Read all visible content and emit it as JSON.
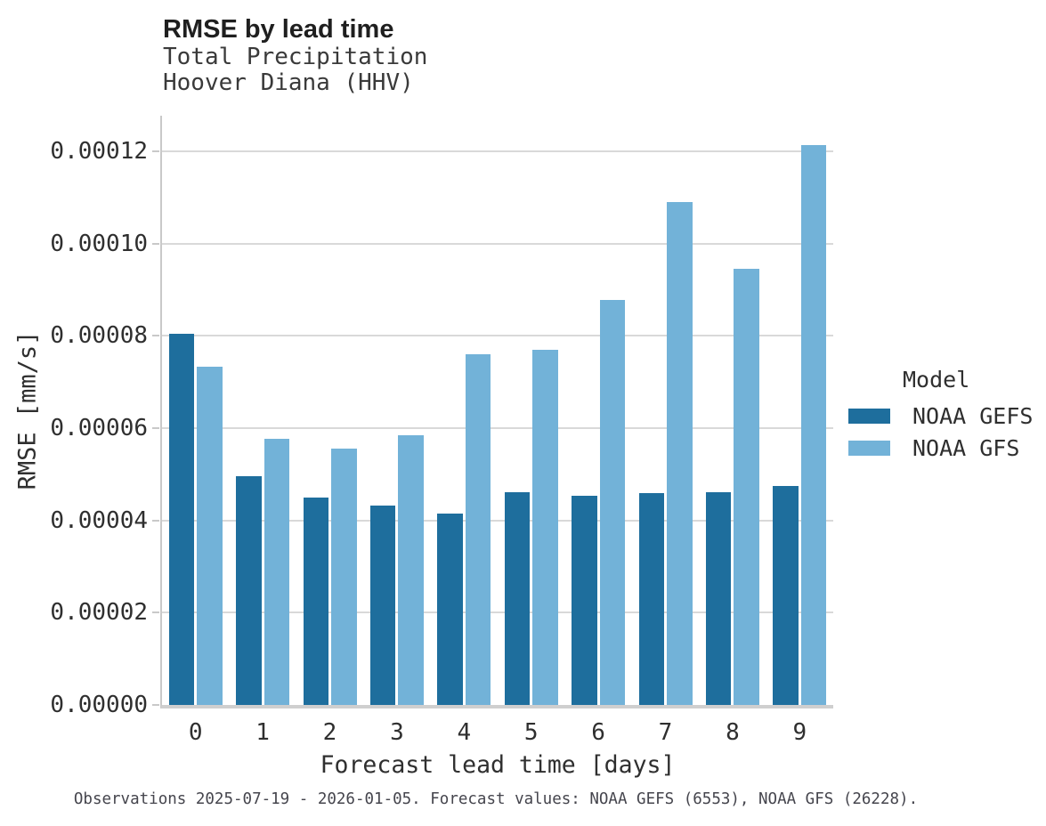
{
  "header": {
    "title": "RMSE by lead time",
    "subtitle_line1": "Total Precipitation",
    "subtitle_line2": "Hoover Diana (HHV)"
  },
  "footer": {
    "caption": "Observations 2025-07-19 - 2026-01-05. Forecast values: NOAA GEFS (6553), NOAA GFS (26228)."
  },
  "legend": {
    "title": "Model",
    "items": [
      {
        "label": "NOAA GEFS",
        "color": "#1e6e9d"
      },
      {
        "label": "NOAA GFS",
        "color": "#72b2d8"
      }
    ]
  },
  "style": {
    "grid_color": "#d9d9d9",
    "y_axis_line_color": "#c9c9c9",
    "x_axis_line_color": "#cfcfcf",
    "text_color": "#2f2f2f",
    "background": "#ffffff"
  },
  "chart_data": {
    "type": "bar",
    "title": "RMSE by lead time",
    "subtitle": [
      "Total Precipitation",
      "Hoover Diana (HHV)"
    ],
    "xlabel": "Forecast lead time [days]",
    "ylabel": "RMSE [mm/s]",
    "categories": [
      0,
      1,
      2,
      3,
      4,
      5,
      6,
      7,
      8,
      9
    ],
    "series": [
      {
        "name": "NOAA GEFS",
        "color": "#1e6e9d",
        "values": [
          8.04e-05,
          4.95e-05,
          4.5e-05,
          4.32e-05,
          4.15e-05,
          4.62e-05,
          4.53e-05,
          4.59e-05,
          4.61e-05,
          4.75e-05
        ]
      },
      {
        "name": "NOAA GFS",
        "color": "#72b2d8",
        "values": [
          7.34e-05,
          5.76e-05,
          5.55e-05,
          5.84e-05,
          7.6e-05,
          7.7e-05,
          8.77e-05,
          0.000109,
          9.46e-05,
          0.0001213
        ]
      }
    ],
    "y_ticks": [
      0.0,
      2e-05,
      4e-05,
      6e-05,
      8e-05,
      0.0001,
      0.00012
    ],
    "y_tick_decimals": 5,
    "ylim": [
      0,
      0.0001277
    ],
    "grid": "horizontal",
    "legend_position": "right",
    "legend_title": "Model"
  }
}
